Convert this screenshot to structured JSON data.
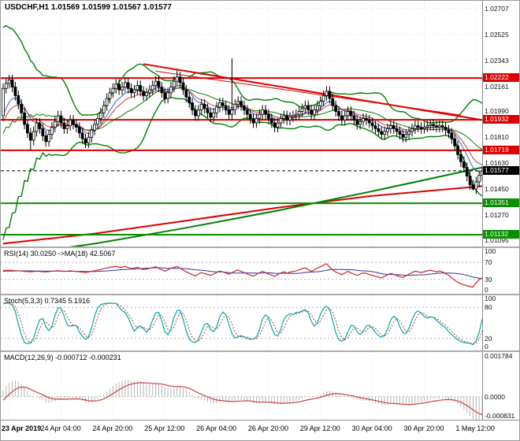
{
  "header": {
    "title": "USDCHF,H1 1.01569 1.01599 1.01567 1.01577"
  },
  "panels": {
    "rsi_label": "RSI(14) 30.0250 ->MA(18) 42.5067",
    "stoch_label": "Stoch(5,3,3) 0.7345 5.1916",
    "macd_label": "MACD(12,26,9) -0.000712 -0.000231"
  },
  "chart_data": [
    {
      "type": "candlestick",
      "title": "USDCHF,H1",
      "symbol": "USDCHF",
      "timeframe": "H1",
      "ohlc_current": {
        "open": 1.01569,
        "high": 1.01599,
        "low": 1.01567,
        "close": 1.01577
      },
      "ylim": [
        1.0105,
        1.0276
      ],
      "y_ticks": [
        "1.02707",
        "1.02525",
        "1.02343",
        "1.02161",
        "1.01990",
        "1.01810",
        "1.01630",
        "1.01450",
        "1.01270",
        "1.01095"
      ],
      "x_labels": [
        "23 Apr 2019",
        "24 Apr 04:00",
        "24 Apr 20:00",
        "25 Apr 12:00",
        "26 Apr 04:00",
        "26 Apr 20:00",
        "29 Apr 12:00",
        "30 Apr 04:00",
        "30 Apr 20:00",
        "1 May 12:00"
      ],
      "x_label_bars": [
        2,
        19,
        36,
        53,
        70,
        87,
        104,
        121,
        138,
        155
      ],
      "pre_closes": [
        1.023,
        1.0124,
        1.0232,
        1.0122,
        1.0234,
        1.012,
        1.0232,
        1.0122,
        1.023,
        1.0124,
        1.0232,
        1.0122,
        1.023,
        1.0124,
        1.0228,
        1.0126,
        1.023,
        1.0125,
        1.0228,
        1.0128,
        1.0226,
        1.0132,
        1.0222,
        1.014,
        1.0216,
        1.015,
        1.021,
        1.0162,
        1.0204,
        1.0175,
        1.02,
        1.0187,
        1.02,
        1.0196
      ],
      "closes": [
        1.0215,
        1.02185,
        1.0221,
        1.0216,
        1.021,
        1.0204,
        1.0198,
        1.019,
        1.0184,
        1.0179,
        1.0185,
        1.0191,
        1.0187,
        1.0182,
        1.0178,
        1.0183,
        1.0188,
        1.0192,
        1.0196,
        1.0191,
        1.0187,
        1.0189,
        1.0193,
        1.019,
        1.0188,
        1.0184,
        1.018,
        1.0177,
        1.0181,
        1.0186,
        1.019,
        1.0194,
        1.0198,
        1.0203,
        1.0208,
        1.0212,
        1.0215,
        1.0218,
        1.0214,
        1.0216,
        1.0219,
        1.0215,
        1.0212,
        1.0214,
        1.0217,
        1.0213,
        1.021,
        1.0212,
        1.0214,
        1.0217,
        1.022,
        1.0216,
        1.0212,
        1.0208,
        1.0212,
        1.0216,
        1.022,
        1.0223,
        1.0219,
        1.0214,
        1.0209,
        1.0205,
        1.02,
        1.0196,
        1.02,
        1.0204,
        1.0201,
        1.0198,
        1.0195,
        1.0198,
        1.0202,
        1.0205,
        1.0203,
        1.02,
        1.0197,
        1.02,
        1.0204,
        1.0206,
        1.0203,
        1.02,
        1.0197,
        1.0194,
        1.0191,
        1.0194,
        1.0197,
        1.02,
        1.0197,
        1.0194,
        1.0191,
        1.0188,
        1.0191,
        1.0194,
        1.0196,
        1.0193,
        1.0195,
        1.0196,
        1.0197,
        1.0199,
        1.0201,
        1.0203,
        1.02,
        1.0197,
        1.02,
        1.0203,
        1.0206,
        1.021,
        1.0213,
        1.0208,
        1.0203,
        1.0199,
        1.0196,
        1.0193,
        1.0196,
        1.0199,
        1.0196,
        1.0193,
        1.019,
        1.0192,
        1.0194,
        1.0193,
        1.0191,
        1.0189,
        1.0187,
        1.0185,
        1.0183,
        1.0185,
        1.0187,
        1.0189,
        1.0187,
        1.0185,
        1.0183,
        1.0181,
        1.0183,
        1.0185,
        1.0187,
        1.0189,
        1.0188,
        1.0187,
        1.0188,
        1.0189,
        1.019,
        1.0189,
        1.0188,
        1.0189,
        1.0188,
        1.0186,
        1.0184,
        1.018,
        1.0175,
        1.0169,
        1.0164,
        1.016,
        1.0154,
        1.0148,
        1.0145,
        1.015,
        1.01545,
        1.01577
      ],
      "wick": 0.00035,
      "wick_overrides": {
        "9": {
          "low": 1.0172
        },
        "57": {
          "high": 1.0228
        },
        "75": {
          "high": 1.0236
        },
        "153": {
          "low": 1.01445
        },
        "154": {
          "low": 1.0144
        }
      },
      "bollinger": {
        "period": 20,
        "deviation": 2,
        "color": "#008000"
      },
      "emas": [
        {
          "period": 8,
          "color": "#3a5fcd"
        },
        {
          "period": 13,
          "color": "#cd3a3a"
        }
      ],
      "levels": [
        {
          "value": 1.02222,
          "label": "1.02222",
          "color": "#dd0000"
        },
        {
          "value": 1.01932,
          "label": "1.01932",
          "color": "#dd0000"
        },
        {
          "value": 1.01719,
          "label": "1.01719",
          "color": "#dd0000"
        },
        {
          "value": 1.01351,
          "label": "1.01351",
          "color": "#089000"
        },
        {
          "value": 1.01132,
          "label": "1.01132",
          "color": "#089000"
        }
      ],
      "current_price": {
        "value": 1.01577,
        "label": "1.01577",
        "badge_color": "#000000"
      },
      "trendlines": [
        {
          "points": [
            [
              46,
              1.0232
            ],
            [
              157,
              1.0193
            ]
          ],
          "color": "#dd0000",
          "width": 2
        },
        {
          "points": [
            [
              50,
              1.0227
            ],
            [
              150,
              1.01965
            ]
          ],
          "color": "#dd0000",
          "width": 1
        }
      ],
      "overlays": [
        {
          "name": "slow-ma-red",
          "color": "#dd0000",
          "width": 2,
          "points": [
            [
              0,
              1.0107
            ],
            [
              30,
              1.0114
            ],
            [
              60,
              1.0123
            ],
            [
              90,
              1.0132
            ],
            [
              120,
              1.014
            ],
            [
              157,
              1.0147
            ]
          ]
        },
        {
          "name": "slow-ma-green",
          "color": "#008000",
          "width": 2,
          "points": [
            [
              0,
              1.0098
            ],
            [
              30,
              1.0107
            ],
            [
              60,
              1.0118
            ],
            [
              90,
              1.013
            ],
            [
              120,
              1.0143
            ],
            [
              157,
              1.016
            ]
          ]
        }
      ]
    },
    {
      "type": "line",
      "name": "RSI",
      "params": "14",
      "current": 30.025,
      "ma_period": 18,
      "ma_current": 42.5067,
      "ylim": [
        0,
        100
      ],
      "y_ticks": [
        100,
        70,
        30,
        0
      ],
      "levels": [
        70,
        30
      ],
      "colors": {
        "rsi": "#c82828",
        "ma": "#3030a0"
      }
    },
    {
      "type": "line",
      "name": "Stochastic",
      "params": "5,3,3",
      "k_current": 0.7345,
      "d_current": 5.1916,
      "ylim": [
        0,
        100
      ],
      "y_ticks": [
        100,
        80,
        20,
        0
      ],
      "levels": [
        80,
        20
      ],
      "colors": {
        "k": "#00a8a8",
        "d": "#c83232"
      }
    },
    {
      "type": "line",
      "name": "MACD",
      "params": "12,26,9",
      "macd_current": -0.000712,
      "signal_current": -0.000231,
      "ylim": [
        -0.00095,
        0.0019
      ],
      "y_ticks": [
        "0.001784",
        "0.0000",
        "-0.000831"
      ],
      "y_tick_values": [
        0.001784,
        0,
        -0.000831
      ],
      "colors": {
        "histogram": "#b4b4b4",
        "signal": "#d04040"
      }
    }
  ]
}
